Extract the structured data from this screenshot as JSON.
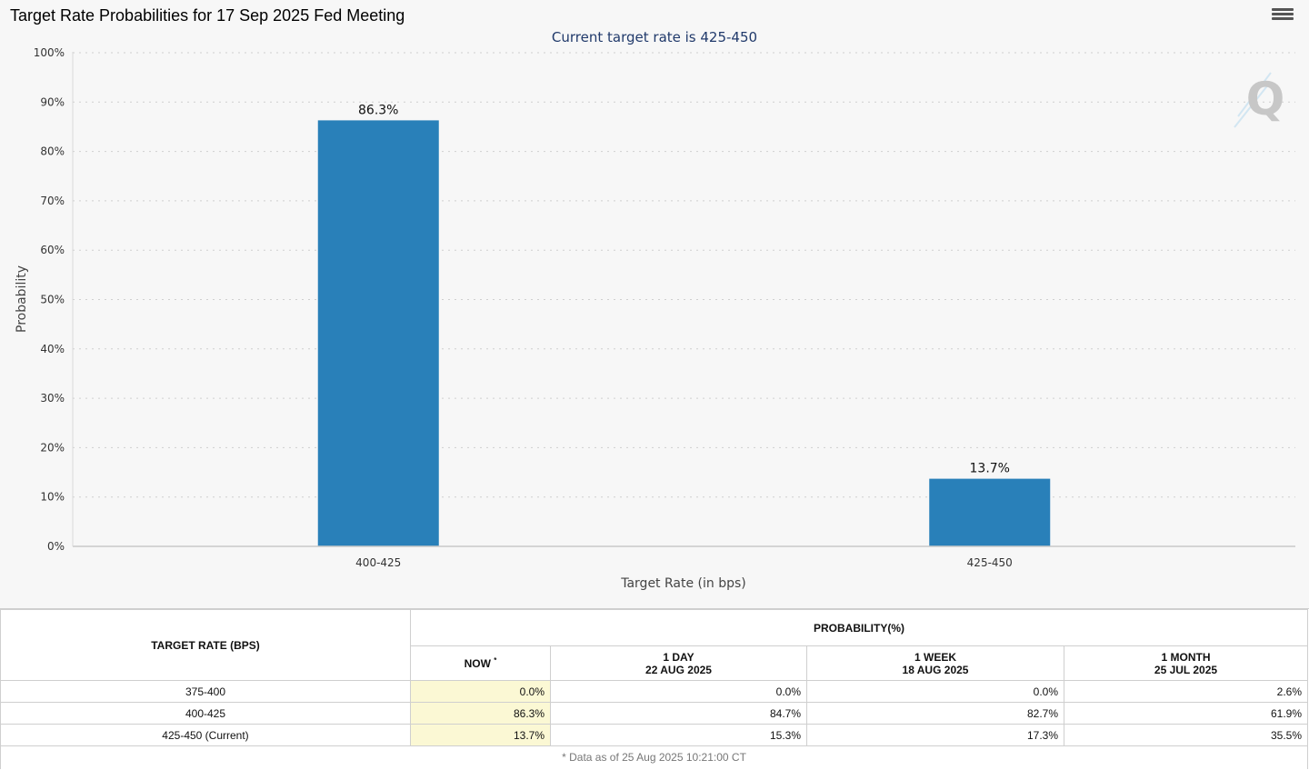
{
  "chart": {
    "title": "Target Rate Probabilities for 17 Sep 2025 Fed Meeting",
    "subtitle": "Current target rate is 425-450",
    "watermark": "Q",
    "menu_icon": "hamburger-menu-icon"
  },
  "chart_data": {
    "type": "bar",
    "categories": [
      "400-425",
      "425-450"
    ],
    "values": [
      86.3,
      13.7
    ],
    "value_labels": [
      "86.3%",
      "13.7%"
    ],
    "xlabel": "Target Rate (in bps)",
    "ylabel": "Probability",
    "ylim": [
      0,
      100
    ],
    "yticks": [
      0,
      10,
      20,
      30,
      40,
      50,
      60,
      70,
      80,
      90,
      100
    ],
    "ytick_labels": [
      "0%",
      "10%",
      "20%",
      "30%",
      "40%",
      "50%",
      "60%",
      "70%",
      "80%",
      "90%",
      "100%"
    ],
    "grid": true,
    "bar_color": "#2980b9"
  },
  "table": {
    "col_rate": "TARGET RATE (BPS)",
    "col_prob": "PROBABILITY(%)",
    "sub_headers": [
      {
        "line1": "NOW",
        "line2": ""
      },
      {
        "line1": "1 DAY",
        "line2": "22 AUG 2025"
      },
      {
        "line1": "1 WEEK",
        "line2": "18 AUG 2025"
      },
      {
        "line1": "1 MONTH",
        "line2": "25 JUL 2025"
      }
    ],
    "now_marker": "*",
    "rows": [
      {
        "rate": "375-400",
        "values": [
          "0.0%",
          "0.0%",
          "0.0%",
          "2.6%"
        ]
      },
      {
        "rate": "400-425",
        "values": [
          "86.3%",
          "84.7%",
          "82.7%",
          "61.9%"
        ]
      },
      {
        "rate": "425-450 (Current)",
        "values": [
          "13.7%",
          "15.3%",
          "17.3%",
          "35.5%"
        ]
      }
    ],
    "footnote": "* Data as of 25 Aug 2025 10:21:00 CT"
  }
}
